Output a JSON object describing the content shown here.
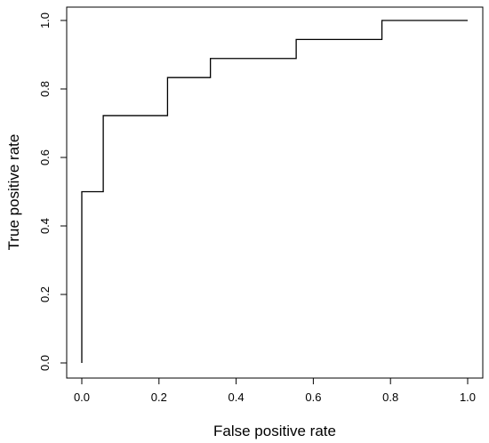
{
  "chart_data": {
    "type": "line",
    "title": "",
    "xlabel": "False positive rate",
    "ylabel": "True positive rate",
    "xlim": [
      0,
      1
    ],
    "ylim": [
      0,
      1
    ],
    "x_ticks": [
      "0.0",
      "0.2",
      "0.4",
      "0.6",
      "0.8",
      "1.0"
    ],
    "y_ticks": [
      "0.0",
      "0.2",
      "0.4",
      "0.6",
      "0.8",
      "1.0"
    ],
    "grid": false,
    "series": [
      {
        "x": [
          0,
          0,
          0.0556,
          0.0556,
          0.2222,
          0.2222,
          0.3333,
          0.3333,
          0.5556,
          0.5556,
          0.7778,
          0.7778,
          1.0
        ],
        "y": [
          0,
          0.5,
          0.5,
          0.7222,
          0.7222,
          0.8333,
          0.8333,
          0.8889,
          0.8889,
          0.9444,
          0.9444,
          1.0,
          1.0
        ],
        "color": "#000000"
      }
    ]
  }
}
